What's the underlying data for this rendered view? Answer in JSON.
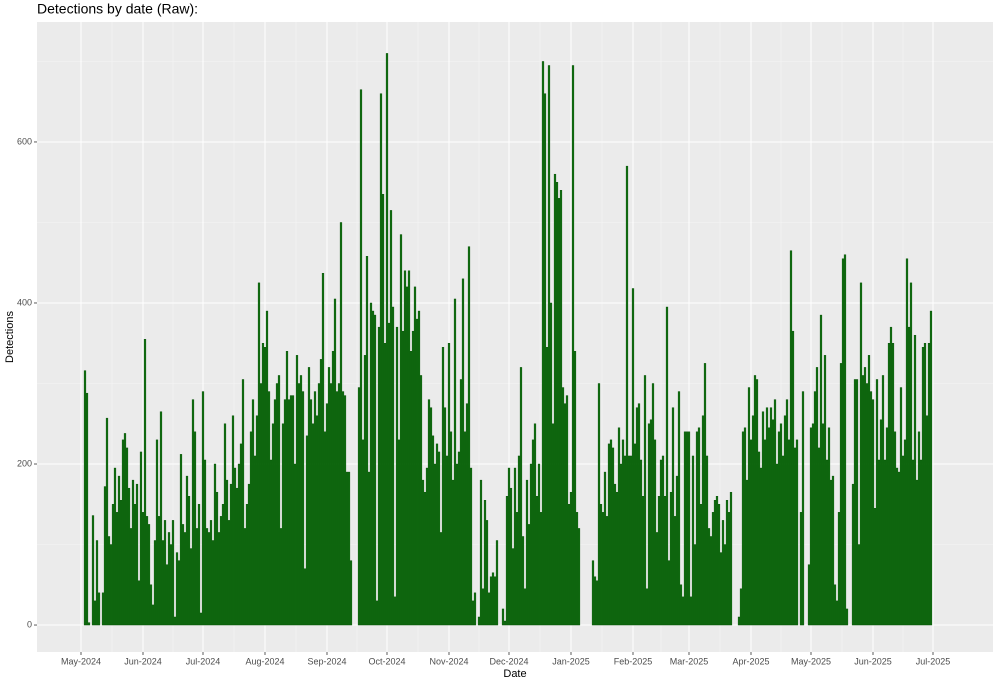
{
  "chart_data": {
    "type": "bar",
    "title": "Detections by date (Raw):",
    "x_label": "Date",
    "y_label": "Detections",
    "color": "#0b6e0b",
    "edge_color": "#004a00",
    "grid": true,
    "xlim": [
      "2024-04-09",
      "2025-07-31"
    ],
    "ylim": [
      -33.5,
      749
    ],
    "yticks": [
      0,
      200,
      400,
      600
    ],
    "xticks": [
      {
        "value": "2024-05-01",
        "label": "May-2024"
      },
      {
        "value": "2024-06-01",
        "label": "Jun-2024"
      },
      {
        "value": "2024-07-01",
        "label": "Jul-2024"
      },
      {
        "value": "2024-08-01",
        "label": "Aug-2024"
      },
      {
        "value": "2024-09-01",
        "label": "Sep-2024"
      },
      {
        "value": "2024-10-01",
        "label": "Oct-2024"
      },
      {
        "value": "2024-11-01",
        "label": "Nov-2024"
      },
      {
        "value": "2024-12-01",
        "label": "Dec-2024"
      },
      {
        "value": "2025-01-01",
        "label": "Jan-2025"
      },
      {
        "value": "2025-02-01",
        "label": "Feb-2025"
      },
      {
        "value": "2025-03-01",
        "label": "Mar-2025"
      },
      {
        "value": "2025-04-01",
        "label": "Apr-2025"
      },
      {
        "value": "2025-05-01",
        "label": "May-2025"
      },
      {
        "value": "2025-06-01",
        "label": "Jun-2025"
      },
      {
        "value": "2025-07-01",
        "label": "Jul-2025"
      }
    ],
    "x": [
      "2024-05-03",
      "2024-05-04",
      "2024-05-05",
      "2024-05-06",
      "2024-05-07",
      "2024-05-08",
      "2024-05-09",
      "2024-05-10",
      "2024-05-11",
      "2024-05-12",
      "2024-05-13",
      "2024-05-14",
      "2024-05-15",
      "2024-05-16",
      "2024-05-17",
      "2024-05-18",
      "2024-05-19",
      "2024-05-20",
      "2024-05-21",
      "2024-05-22",
      "2024-05-23",
      "2024-05-24",
      "2024-05-25",
      "2024-05-26",
      "2024-05-27",
      "2024-05-28",
      "2024-05-29",
      "2024-05-30",
      "2024-05-31",
      "2024-06-01",
      "2024-06-02",
      "2024-06-03",
      "2024-06-04",
      "2024-06-05",
      "2024-06-06",
      "2024-06-07",
      "2024-06-08",
      "2024-06-09",
      "2024-06-10",
      "2024-06-11",
      "2024-06-12",
      "2024-06-13",
      "2024-06-14",
      "2024-06-15",
      "2024-06-16",
      "2024-06-17",
      "2024-06-18",
      "2024-06-19",
      "2024-06-20",
      "2024-06-21",
      "2024-06-22",
      "2024-06-23",
      "2024-06-24",
      "2024-06-25",
      "2024-06-26",
      "2024-06-27",
      "2024-06-28",
      "2024-06-29",
      "2024-06-30",
      "2024-07-01",
      "2024-07-02",
      "2024-07-03",
      "2024-07-04",
      "2024-07-05",
      "2024-07-06",
      "2024-07-07",
      "2024-07-08",
      "2024-07-09",
      "2024-07-10",
      "2024-07-11",
      "2024-07-12",
      "2024-07-13",
      "2024-07-14",
      "2024-07-15",
      "2024-07-16",
      "2024-07-17",
      "2024-07-18",
      "2024-07-19",
      "2024-07-20",
      "2024-07-21",
      "2024-07-22",
      "2024-07-23",
      "2024-07-24",
      "2024-07-25",
      "2024-07-26",
      "2024-07-27",
      "2024-07-28",
      "2024-07-29",
      "2024-07-30",
      "2024-07-31",
      "2024-08-01",
      "2024-08-02",
      "2024-08-03",
      "2024-08-04",
      "2024-08-05",
      "2024-08-06",
      "2024-08-07",
      "2024-08-08",
      "2024-08-09",
      "2024-08-10",
      "2024-08-11",
      "2024-08-12",
      "2024-08-13",
      "2024-08-14",
      "2024-08-15",
      "2024-08-16",
      "2024-08-17",
      "2024-08-18",
      "2024-08-19",
      "2024-08-20",
      "2024-08-21",
      "2024-08-22",
      "2024-08-23",
      "2024-08-24",
      "2024-08-25",
      "2024-08-26",
      "2024-08-27",
      "2024-08-28",
      "2024-08-29",
      "2024-08-30",
      "2024-08-31",
      "2024-09-01",
      "2024-09-02",
      "2024-09-03",
      "2024-09-04",
      "2024-09-05",
      "2024-09-06",
      "2024-09-07",
      "2024-09-08",
      "2024-09-09",
      "2024-09-10",
      "2024-09-11",
      "2024-09-12",
      "2024-09-13",
      "2024-09-14",
      "2024-09-15",
      "2024-09-16",
      "2024-09-17",
      "2024-09-18",
      "2024-09-19",
      "2024-09-20",
      "2024-09-21",
      "2024-09-22",
      "2024-09-23",
      "2024-09-24",
      "2024-09-25",
      "2024-09-26",
      "2024-09-27",
      "2024-09-28",
      "2024-09-29",
      "2024-09-30",
      "2024-10-01",
      "2024-10-02",
      "2024-10-03",
      "2024-10-04",
      "2024-10-05",
      "2024-10-06",
      "2024-10-07",
      "2024-10-08",
      "2024-10-09",
      "2024-10-10",
      "2024-10-11",
      "2024-10-12",
      "2024-10-13",
      "2024-10-14",
      "2024-10-15",
      "2024-10-16",
      "2024-10-17",
      "2024-10-18",
      "2024-10-19",
      "2024-10-20",
      "2024-10-21",
      "2024-10-22",
      "2024-10-23",
      "2024-10-24",
      "2024-10-25",
      "2024-10-26",
      "2024-10-27",
      "2024-10-28",
      "2024-10-29",
      "2024-10-30",
      "2024-10-31",
      "2024-11-01",
      "2024-11-02",
      "2024-11-03",
      "2024-11-04",
      "2024-11-05",
      "2024-11-06",
      "2024-11-07",
      "2024-11-08",
      "2024-11-09",
      "2024-11-10",
      "2024-11-11",
      "2024-11-12",
      "2024-11-13",
      "2024-11-14",
      "2024-11-15",
      "2024-11-16",
      "2024-11-17",
      "2024-11-18",
      "2024-11-19",
      "2024-11-20",
      "2024-11-21",
      "2024-11-22",
      "2024-11-23",
      "2024-11-24",
      "2024-11-25",
      "2024-11-26",
      "2024-11-27",
      "2024-11-28",
      "2024-11-29",
      "2024-11-30",
      "2024-12-01",
      "2024-12-02",
      "2024-12-03",
      "2024-12-04",
      "2024-12-05",
      "2024-12-06",
      "2024-12-07",
      "2024-12-08",
      "2024-12-09",
      "2024-12-10",
      "2024-12-11",
      "2024-12-12",
      "2024-12-13",
      "2024-12-14",
      "2024-12-15",
      "2024-12-16",
      "2024-12-17",
      "2024-12-18",
      "2024-12-19",
      "2024-12-20",
      "2024-12-21",
      "2024-12-22",
      "2024-12-23",
      "2024-12-24",
      "2024-12-25",
      "2024-12-26",
      "2024-12-27",
      "2024-12-28",
      "2024-12-29",
      "2024-12-30",
      "2024-12-31",
      "2025-01-01",
      "2025-01-02",
      "2025-01-03",
      "2025-01-04",
      "2025-01-05",
      "2025-01-06",
      "2025-01-07",
      "2025-01-08",
      "2025-01-09",
      "2025-01-10",
      "2025-01-11",
      "2025-01-12",
      "2025-01-13",
      "2025-01-14",
      "2025-01-15",
      "2025-01-16",
      "2025-01-17",
      "2025-01-18",
      "2025-01-19",
      "2025-01-20",
      "2025-01-21",
      "2025-01-22",
      "2025-01-23",
      "2025-01-24",
      "2025-01-25",
      "2025-01-26",
      "2025-01-27",
      "2025-01-28",
      "2025-01-29",
      "2025-01-30",
      "2025-01-31",
      "2025-02-01",
      "2025-02-02",
      "2025-02-03",
      "2025-02-04",
      "2025-02-05",
      "2025-02-06",
      "2025-02-07",
      "2025-02-08",
      "2025-02-09",
      "2025-02-10",
      "2025-02-11",
      "2025-02-12",
      "2025-02-13",
      "2025-02-14",
      "2025-02-15",
      "2025-02-16",
      "2025-02-17",
      "2025-02-18",
      "2025-02-19",
      "2025-02-20",
      "2025-02-21",
      "2025-02-22",
      "2025-02-23",
      "2025-02-24",
      "2025-02-25",
      "2025-02-26",
      "2025-02-27",
      "2025-02-28",
      "2025-03-01",
      "2025-03-02",
      "2025-03-03",
      "2025-03-04",
      "2025-03-05",
      "2025-03-06",
      "2025-03-07",
      "2025-03-08",
      "2025-03-09",
      "2025-03-10",
      "2025-03-11",
      "2025-03-12",
      "2025-03-13",
      "2025-03-14",
      "2025-03-15",
      "2025-03-16",
      "2025-03-17",
      "2025-03-18",
      "2025-03-19",
      "2025-03-20",
      "2025-03-21",
      "2025-03-22",
      "2025-03-23",
      "2025-03-24",
      "2025-03-25",
      "2025-03-26",
      "2025-03-27",
      "2025-03-28",
      "2025-03-29",
      "2025-03-30",
      "2025-03-31",
      "2025-04-01",
      "2025-04-02",
      "2025-04-03",
      "2025-04-04",
      "2025-04-05",
      "2025-04-06",
      "2025-04-07",
      "2025-04-08",
      "2025-04-09",
      "2025-04-10",
      "2025-04-11",
      "2025-04-12",
      "2025-04-13",
      "2025-04-14",
      "2025-04-15",
      "2025-04-16",
      "2025-04-17",
      "2025-04-18",
      "2025-04-19",
      "2025-04-20",
      "2025-04-21",
      "2025-04-22",
      "2025-04-23",
      "2025-04-24",
      "2025-04-25",
      "2025-04-26",
      "2025-04-27",
      "2025-04-28",
      "2025-04-29",
      "2025-04-30",
      "2025-05-01",
      "2025-05-02",
      "2025-05-03",
      "2025-05-04",
      "2025-05-05",
      "2025-05-06",
      "2025-05-07",
      "2025-05-08",
      "2025-05-09",
      "2025-05-10",
      "2025-05-11",
      "2025-05-12",
      "2025-05-13",
      "2025-05-14",
      "2025-05-15",
      "2025-05-16",
      "2025-05-17",
      "2025-05-18",
      "2025-05-19",
      "2025-05-20",
      "2025-05-21",
      "2025-05-22",
      "2025-05-23",
      "2025-05-24",
      "2025-05-25",
      "2025-05-26",
      "2025-05-27",
      "2025-05-28",
      "2025-05-29",
      "2025-05-30",
      "2025-05-31",
      "2025-06-01",
      "2025-06-02",
      "2025-06-03",
      "2025-06-04",
      "2025-06-05",
      "2025-06-06",
      "2025-06-07",
      "2025-06-08",
      "2025-06-09",
      "2025-06-10",
      "2025-06-11",
      "2025-06-12",
      "2025-06-13",
      "2025-06-14",
      "2025-06-15",
      "2025-06-16",
      "2025-06-17",
      "2025-06-18",
      "2025-06-19",
      "2025-06-20",
      "2025-06-21",
      "2025-06-22",
      "2025-06-23",
      "2025-06-24",
      "2025-06-25",
      "2025-06-26",
      "2025-06-27",
      "2025-06-28",
      "2025-06-29",
      "2025-06-30"
    ],
    "values": [
      316,
      288,
      3,
      0,
      136,
      30,
      105,
      40,
      0,
      40,
      172,
      257,
      110,
      100,
      150,
      195,
      140,
      185,
      155,
      230,
      238,
      220,
      170,
      120,
      180,
      150,
      175,
      55,
      215,
      140,
      355,
      135,
      125,
      50,
      25,
      105,
      230,
      135,
      265,
      105,
      130,
      75,
      115,
      100,
      130,
      10,
      90,
      80,
      212,
      125,
      115,
      185,
      160,
      95,
      280,
      240,
      120,
      150,
      15,
      290,
      205,
      120,
      115,
      130,
      105,
      200,
      165,
      115,
      135,
      150,
      250,
      180,
      130,
      175,
      260,
      195,
      170,
      200,
      225,
      305,
      120,
      150,
      175,
      240,
      280,
      210,
      260,
      425,
      300,
      350,
      345,
      390,
      290,
      205,
      250,
      280,
      300,
      310,
      120,
      250,
      280,
      340,
      280,
      285,
      285,
      200,
      335,
      300,
      310,
      290,
      70,
      235,
      320,
      280,
      250,
      290,
      260,
      300,
      330,
      437,
      240,
      275,
      320,
      300,
      340,
      405,
      290,
      300,
      500,
      290,
      285,
      190,
      190,
      80,
      null,
      null,
      null,
      295,
      665,
      230,
      335,
      458,
      190,
      400,
      390,
      385,
      30,
      370,
      660,
      535,
      350,
      710,
      375,
      515,
      395,
      35,
      370,
      230,
      485,
      365,
      440,
      420,
      440,
      340,
      365,
      420,
      380,
      390,
      310,
      180,
      165,
      195,
      280,
      270,
      235,
      200,
      225,
      215,
      115,
      345,
      270,
      210,
      350,
      240,
      180,
      405,
      200,
      215,
      305,
      430,
      240,
      275,
      470,
      195,
      30,
      40,
      0,
      10,
      180,
      45,
      155,
      130,
      40,
      60,
      65,
      60,
      105,
      0,
      0,
      20,
      5,
      160,
      195,
      170,
      95,
      195,
      140,
      210,
      320,
      110,
      45,
      180,
      125,
      200,
      230,
      250,
      160,
      200,
      140,
      700,
      660,
      345,
      695,
      400,
      250,
      560,
      550,
      530,
      540,
      295,
      275,
      285,
      150,
      165,
      695,
      340,
      140,
      120,
      null,
      null,
      null,
      null,
      null,
      null,
      80,
      60,
      55,
      300,
      150,
      140,
      190,
      135,
      225,
      230,
      220,
      175,
      165,
      245,
      200,
      230,
      210,
      570,
      210,
      210,
      418,
      225,
      270,
      275,
      205,
      160,
      310,
      45,
      250,
      255,
      300,
      230,
      115,
      160,
      205,
      210,
      160,
      395,
      80,
      165,
      270,
      135,
      185,
      290,
      50,
      35,
      240,
      240,
      240,
      35,
      210,
      100,
      240,
      245,
      150,
      260,
      325,
      210,
      120,
      110,
      140,
      155,
      160,
      150,
      90,
      130,
      100,
      155,
      140,
      165,
      0,
      0,
      0,
      10,
      45,
      240,
      245,
      180,
      295,
      230,
      260,
      310,
      305,
      215,
      195,
      265,
      230,
      270,
      245,
      270,
      255,
      280,
      200,
      240,
      250,
      210,
      260,
      280,
      230,
      465,
      365,
      220,
      230,
      null,
      140,
      290,
      null,
      null,
      75,
      245,
      250,
      290,
      320,
      220,
      385,
      250,
      335,
      205,
      245,
      180,
      185,
      50,
      30,
      140,
      325,
      455,
      460,
      20,
      0,
      null,
      175,
      305,
      305,
      100,
      425,
      310,
      320,
      300,
      335,
      290,
      280,
      145,
      305,
      205,
      255,
      310,
      205,
      245,
      350,
      370,
      350,
      240,
      195,
      190,
      295,
      210,
      230,
      455,
      370,
      425,
      205,
      360,
      180,
      240,
      205,
      345,
      350,
      260,
      350,
      390
    ]
  }
}
